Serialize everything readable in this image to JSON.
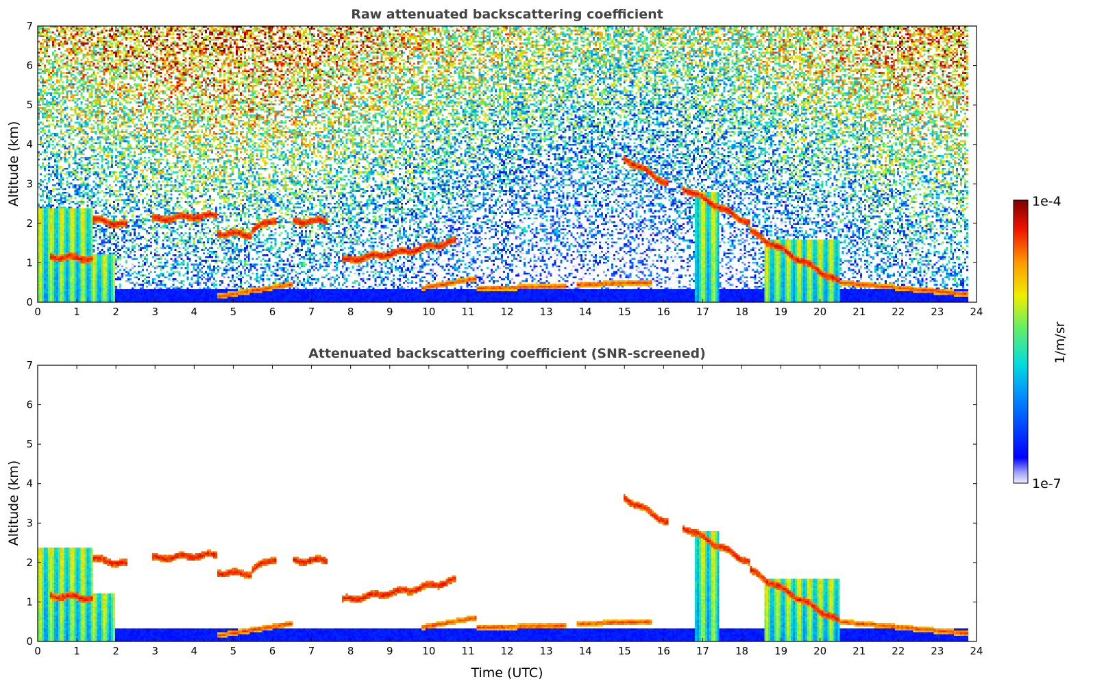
{
  "chart_data": [
    {
      "type": "heatmap",
      "title": "Raw attenuated backscattering coefficient",
      "xlabel": "",
      "ylabel": "Altitude (km)",
      "xlim": [
        0,
        24
      ],
      "ylim": [
        0,
        7
      ],
      "xticks": [
        "0",
        "1",
        "2",
        "3",
        "4",
        "5",
        "6",
        "7",
        "8",
        "9",
        "10",
        "11",
        "12",
        "13",
        "14",
        "15",
        "16",
        "17",
        "18",
        "19",
        "20",
        "21",
        "22",
        "23",
        "24"
      ],
      "yticks": [
        "0",
        "1",
        "2",
        "3",
        "4",
        "5",
        "6",
        "7"
      ],
      "background": "noisy",
      "cloud_layers": [
        {
          "t": [
            0.3,
            1.4
          ],
          "z": [
            1.15,
            1.1
          ]
        },
        {
          "t": [
            1.4,
            2.3
          ],
          "z": [
            2.1,
            1.95
          ]
        },
        {
          "t": [
            2.9,
            4.6
          ],
          "z": [
            2.1,
            2.2
          ]
        },
        {
          "t": [
            4.6,
            5.5
          ],
          "z": [
            1.75,
            1.7
          ]
        },
        {
          "t": [
            5.5,
            6.1
          ],
          "z": [
            1.85,
            2.1
          ]
        },
        {
          "t": [
            6.5,
            7.4
          ],
          "z": [
            2.05,
            2.05
          ]
        },
        {
          "t": [
            7.8,
            9.5
          ],
          "z": [
            1.05,
            1.3
          ]
        },
        {
          "t": [
            9.5,
            10.7
          ],
          "z": [
            1.3,
            1.55
          ]
        },
        {
          "t": [
            15.0,
            16.1
          ],
          "z": [
            3.65,
            3.0
          ]
        },
        {
          "t": [
            16.5,
            18.2
          ],
          "z": [
            2.9,
            2.0
          ]
        },
        {
          "t": [
            18.2,
            20.5
          ],
          "z": [
            1.8,
            0.5
          ]
        }
      ],
      "low_layers": [
        {
          "t": [
            4.6,
            6.5
          ],
          "z": [
            0.15,
            0.45
          ]
        },
        {
          "t": [
            9.8,
            11.2
          ],
          "z": [
            0.35,
            0.6
          ]
        },
        {
          "t": [
            11.2,
            13.5
          ],
          "z": [
            0.35,
            0.4
          ]
        },
        {
          "t": [
            13.8,
            15.7
          ],
          "z": [
            0.45,
            0.5
          ]
        },
        {
          "t": [
            20.5,
            23.8
          ],
          "z": [
            0.5,
            0.2
          ]
        }
      ],
      "precip_columns": [
        {
          "t": [
            0.0,
            1.4
          ],
          "z": 2.4
        },
        {
          "t": [
            1.4,
            2.0
          ],
          "z": 1.2
        },
        {
          "t": [
            16.8,
            17.4
          ],
          "z": 2.8
        },
        {
          "t": [
            18.6,
            20.5
          ],
          "z": 1.6
        }
      ]
    },
    {
      "type": "heatmap",
      "title": "Attenuated backscattering coefficient (SNR-screened)",
      "xlabel": "Time (UTC)",
      "ylabel": "Altitude (km)",
      "xlim": [
        0,
        24
      ],
      "ylim": [
        0,
        7
      ],
      "xticks": [
        "0",
        "1",
        "2",
        "3",
        "4",
        "5",
        "6",
        "7",
        "8",
        "9",
        "10",
        "11",
        "12",
        "13",
        "14",
        "15",
        "16",
        "17",
        "18",
        "19",
        "20",
        "21",
        "22",
        "23",
        "24"
      ],
      "yticks": [
        "0",
        "1",
        "2",
        "3",
        "4",
        "5",
        "6",
        "7"
      ],
      "background": "screened",
      "cloud_layers": [
        {
          "t": [
            0.3,
            1.4
          ],
          "z": [
            1.15,
            1.1
          ]
        },
        {
          "t": [
            1.4,
            2.3
          ],
          "z": [
            2.1,
            1.95
          ]
        },
        {
          "t": [
            2.9,
            4.6
          ],
          "z": [
            2.1,
            2.2
          ]
        },
        {
          "t": [
            4.6,
            5.5
          ],
          "z": [
            1.75,
            1.7
          ]
        },
        {
          "t": [
            5.5,
            6.1
          ],
          "z": [
            1.85,
            2.1
          ]
        },
        {
          "t": [
            6.5,
            7.4
          ],
          "z": [
            2.05,
            2.05
          ]
        },
        {
          "t": [
            7.8,
            9.5
          ],
          "z": [
            1.05,
            1.3
          ]
        },
        {
          "t": [
            9.5,
            10.7
          ],
          "z": [
            1.3,
            1.55
          ]
        },
        {
          "t": [
            15.0,
            16.1
          ],
          "z": [
            3.65,
            3.0
          ]
        },
        {
          "t": [
            16.5,
            18.2
          ],
          "z": [
            2.9,
            2.0
          ]
        },
        {
          "t": [
            18.2,
            20.5
          ],
          "z": [
            1.8,
            0.5
          ]
        }
      ],
      "low_layers": [
        {
          "t": [
            4.6,
            6.5
          ],
          "z": [
            0.15,
            0.45
          ]
        },
        {
          "t": [
            9.8,
            11.2
          ],
          "z": [
            0.35,
            0.6
          ]
        },
        {
          "t": [
            11.2,
            13.5
          ],
          "z": [
            0.35,
            0.4
          ]
        },
        {
          "t": [
            13.8,
            15.7
          ],
          "z": [
            0.45,
            0.5
          ]
        },
        {
          "t": [
            20.5,
            23.8
          ],
          "z": [
            0.5,
            0.2
          ]
        }
      ],
      "precip_columns": [
        {
          "t": [
            0.0,
            1.4
          ],
          "z": 2.4
        },
        {
          "t": [
            1.4,
            2.0
          ],
          "z": 1.2
        },
        {
          "t": [
            16.8,
            17.4
          ],
          "z": 2.8
        },
        {
          "t": [
            18.6,
            20.5
          ],
          "z": 1.6
        }
      ]
    }
  ],
  "colorbar": {
    "label": "1/m/sr",
    "max_label": "1e-4",
    "min_label": "1e-7",
    "scale": "log",
    "range": [
      1e-07,
      0.0001
    ],
    "colormap": "jet"
  }
}
